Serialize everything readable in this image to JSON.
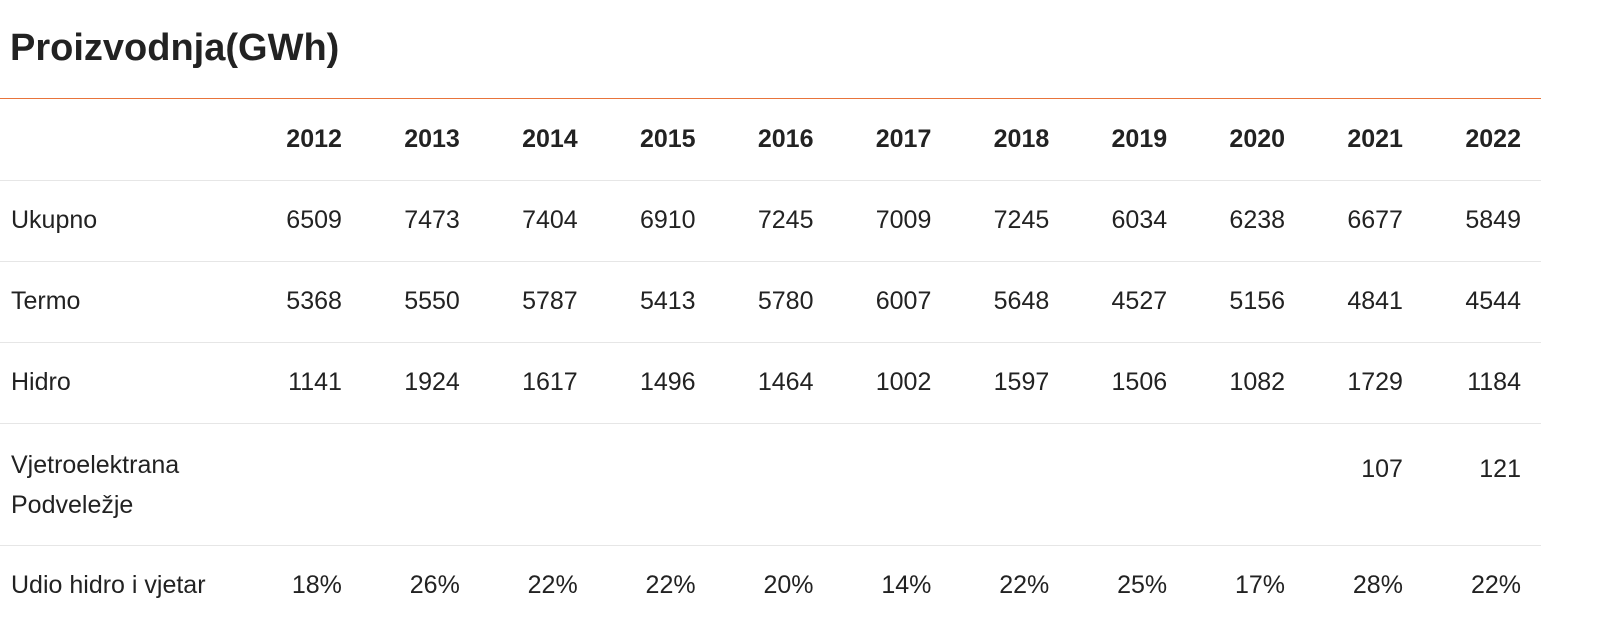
{
  "title": "Proizvodnja(GWh)",
  "colors": {
    "accent_rule": "#e8743b",
    "row_divider": "#e6e6e6",
    "text": "#222222"
  },
  "table": {
    "years": [
      "2012",
      "2013",
      "2014",
      "2015",
      "2016",
      "2017",
      "2018",
      "2019",
      "2020",
      "2021",
      "2022"
    ],
    "rows": [
      {
        "label": "Ukupno",
        "values": [
          "6509",
          "7473",
          "7404",
          "6910",
          "7245",
          "7009",
          "7245",
          "6034",
          "6238",
          "6677",
          "5849"
        ]
      },
      {
        "label": "Termo",
        "values": [
          "5368",
          "5550",
          "5787",
          "5413",
          "5780",
          "6007",
          "5648",
          "4527",
          "5156",
          "4841",
          "4544"
        ]
      },
      {
        "label": "Hidro",
        "values": [
          "1141",
          "1924",
          "1617",
          "1496",
          "1464",
          "1002",
          "1597",
          "1506",
          "1082",
          "1729",
          "1184"
        ]
      },
      {
        "label": "Vjetroelektrana Podveležje",
        "values": [
          "",
          "",
          "",
          "",
          "",
          "",
          "",
          "",
          "",
          "107",
          "121"
        ]
      },
      {
        "label": "Udio hidro i vjetar",
        "values": [
          "18%",
          "26%",
          "22%",
          "22%",
          "20%",
          "14%",
          "22%",
          "25%",
          "17%",
          "28%",
          "22%"
        ]
      }
    ]
  }
}
